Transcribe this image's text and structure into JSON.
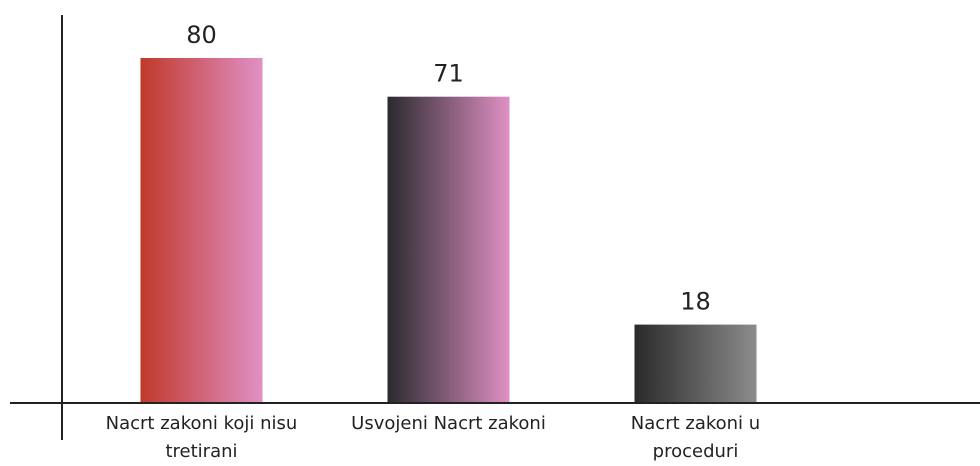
{
  "chart_data": {
    "type": "bar",
    "categories": [
      "Nacrt zakoni koji nisu tretirani",
      "Usvojeni Nacrt zakoni",
      "Nacrt zakoni u proceduri"
    ],
    "values": [
      80,
      71,
      18
    ],
    "colors": [
      [
        "#c0392b",
        "#e090c4"
      ],
      [
        "#2a2a2e",
        "#e090c4"
      ],
      [
        "#2a2a2a",
        "#8c8c8c"
      ]
    ],
    "ylim": [
      0,
      90
    ]
  }
}
